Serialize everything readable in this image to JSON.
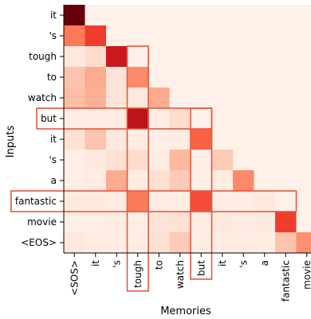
{
  "chart_data": {
    "type": "heatmap",
    "xlabel": "Memories",
    "ylabel": "Inputs",
    "x_tick_labels": [
      "<SOS>",
      "it",
      "'s",
      "tough",
      "to",
      "watch",
      "but",
      "it",
      "'s",
      "a",
      "fantastic",
      "movie"
    ],
    "y_tick_labels": [
      "it",
      "'s",
      "tough",
      "to",
      "watch",
      "but",
      "it",
      "'s",
      "a",
      "fantastic",
      "movie",
      "<EOS>"
    ],
    "colormap": "Reds",
    "value_range": [
      0,
      1
    ],
    "values": [
      [
        1.0,
        0.03,
        0.03,
        0.03,
        0.03,
        0.03,
        0.03,
        0.03,
        0.03,
        0.03,
        0.03,
        0.03
      ],
      [
        0.45,
        0.62,
        0.03,
        0.03,
        0.03,
        0.03,
        0.03,
        0.03,
        0.03,
        0.03,
        0.03,
        0.03
      ],
      [
        0.08,
        0.14,
        0.75,
        0.03,
        0.03,
        0.03,
        0.03,
        0.03,
        0.03,
        0.03,
        0.03,
        0.03
      ],
      [
        0.22,
        0.3,
        0.1,
        0.4,
        0.03,
        0.03,
        0.03,
        0.03,
        0.03,
        0.03,
        0.03,
        0.03
      ],
      [
        0.24,
        0.28,
        0.1,
        0.08,
        0.3,
        0.03,
        0.03,
        0.03,
        0.03,
        0.03,
        0.03,
        0.03
      ],
      [
        0.05,
        0.05,
        0.06,
        0.8,
        0.05,
        0.14,
        0.03,
        0.03,
        0.03,
        0.03,
        0.03,
        0.03
      ],
      [
        0.12,
        0.22,
        0.07,
        0.05,
        0.04,
        0.06,
        0.52,
        0.03,
        0.03,
        0.03,
        0.03,
        0.03
      ],
      [
        0.04,
        0.07,
        0.12,
        0.14,
        0.05,
        0.26,
        0.04,
        0.2,
        0.03,
        0.03,
        0.03,
        0.03
      ],
      [
        0.04,
        0.06,
        0.3,
        0.05,
        0.12,
        0.2,
        0.04,
        0.06,
        0.4,
        0.03,
        0.03,
        0.03
      ],
      [
        0.07,
        0.07,
        0.06,
        0.45,
        0.06,
        0.05,
        0.58,
        0.05,
        0.06,
        0.08,
        0.03,
        0.03
      ],
      [
        0.04,
        0.04,
        0.05,
        0.04,
        0.1,
        0.12,
        0.06,
        0.07,
        0.06,
        0.07,
        0.62,
        0.03
      ],
      [
        0.08,
        0.06,
        0.05,
        0.05,
        0.12,
        0.2,
        0.05,
        0.05,
        0.06,
        0.05,
        0.22,
        0.38
      ]
    ],
    "highlights": {
      "rows": [
        "but",
        "fantastic"
      ],
      "columns": [
        "tough",
        "but"
      ],
      "color": "#e8563f"
    },
    "grid": false
  }
}
